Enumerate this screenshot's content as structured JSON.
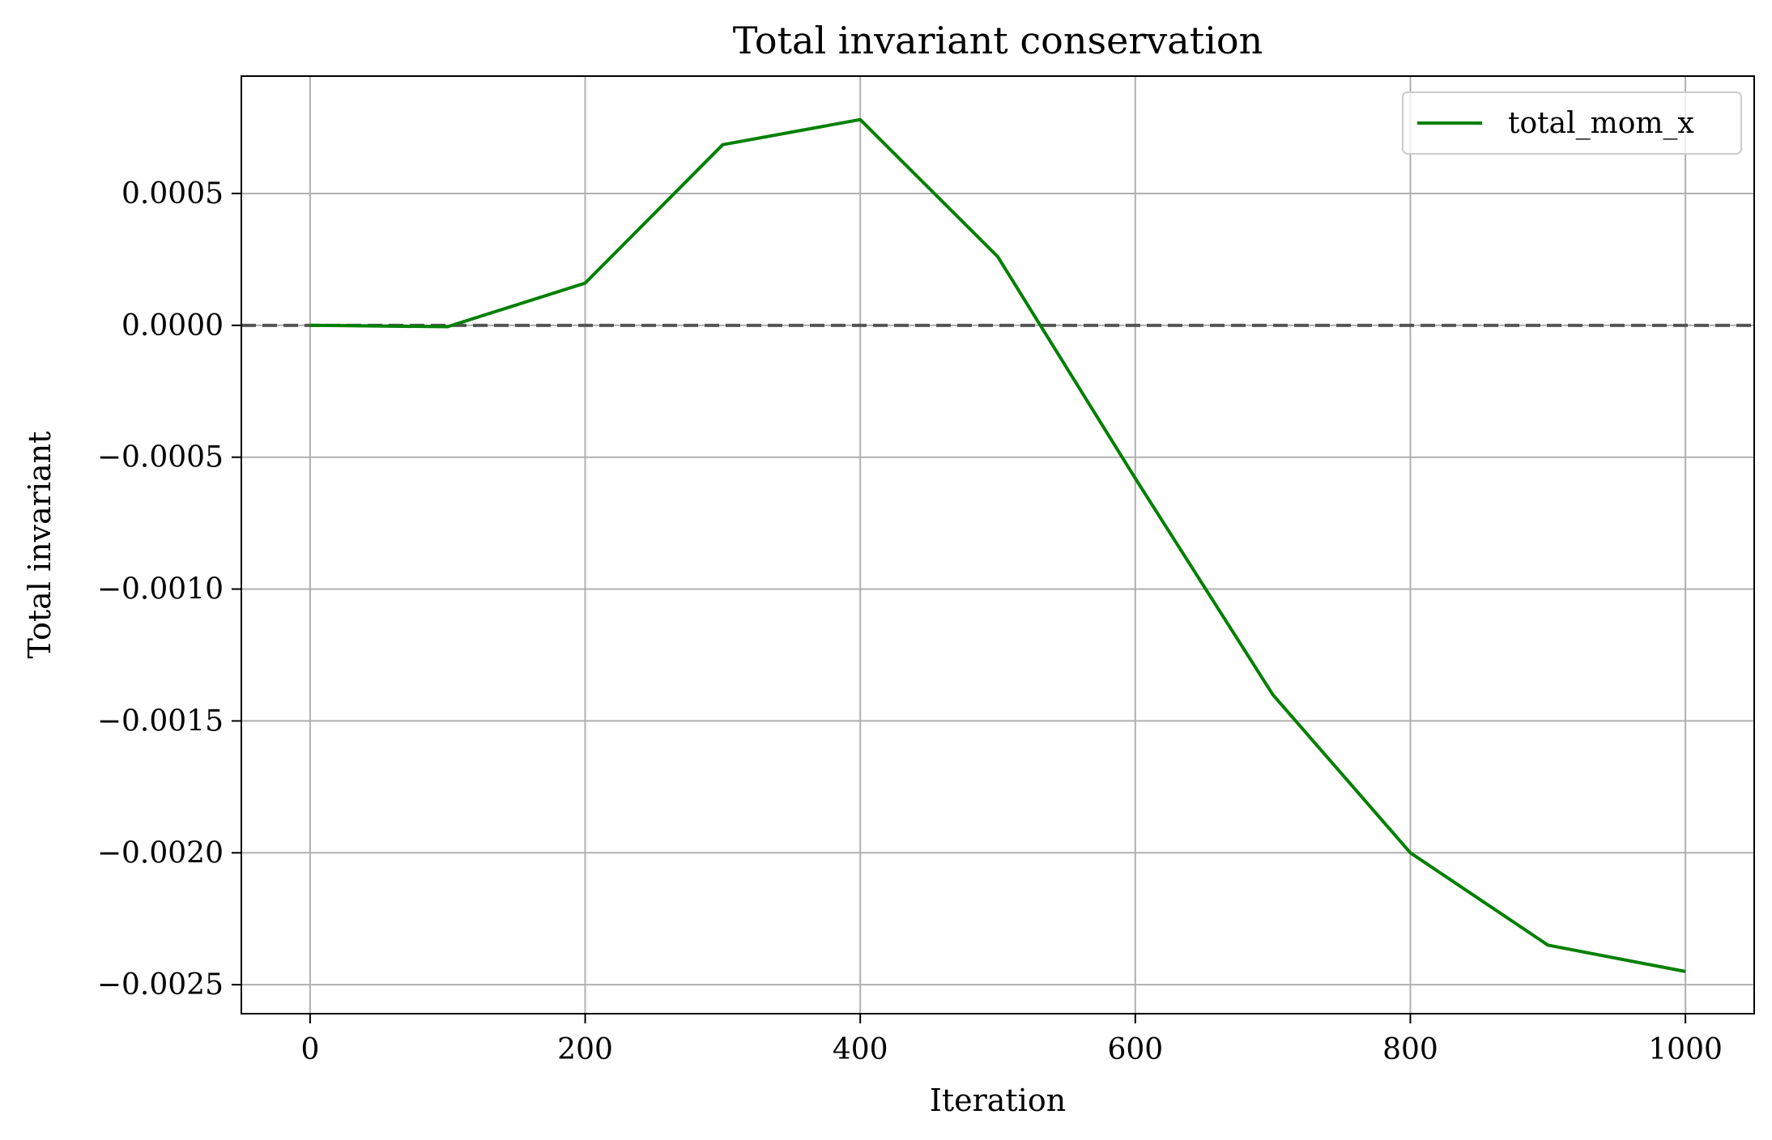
{
  "chart_data": {
    "type": "line",
    "title": "Total invariant conservation",
    "xlabel": "Iteration",
    "ylabel": "Total invariant",
    "xlim": [
      -50,
      1050
    ],
    "ylim": [
      -0.00261,
      0.000945
    ],
    "xticks": [
      0,
      200,
      400,
      600,
      800,
      1000
    ],
    "xtick_labels": [
      "0",
      "200",
      "400",
      "600",
      "800",
      "1000"
    ],
    "yticks": [
      0.0005,
      0.0,
      -0.0005,
      -0.001,
      -0.0015,
      -0.002,
      -0.0025
    ],
    "ytick_labels": [
      "0.0005",
      "0.0000",
      "−0.0005",
      "−0.0010",
      "−0.0015",
      "−0.0020",
      "−0.0025"
    ],
    "grid": true,
    "legend_position": "top-right",
    "reference_line": {
      "y": 0.0,
      "style": "dashed",
      "color": "#555555"
    },
    "series": [
      {
        "name": "total_mom_x",
        "color": "#008000",
        "x": [
          0,
          100,
          200,
          300,
          400,
          500,
          600,
          700,
          800,
          900,
          1000
        ],
        "y": [
          0.0,
          -5e-06,
          0.00016,
          0.000685,
          0.00078,
          0.00026,
          -0.00058,
          -0.0014,
          -0.002,
          -0.00235,
          -0.00245
        ]
      }
    ]
  }
}
